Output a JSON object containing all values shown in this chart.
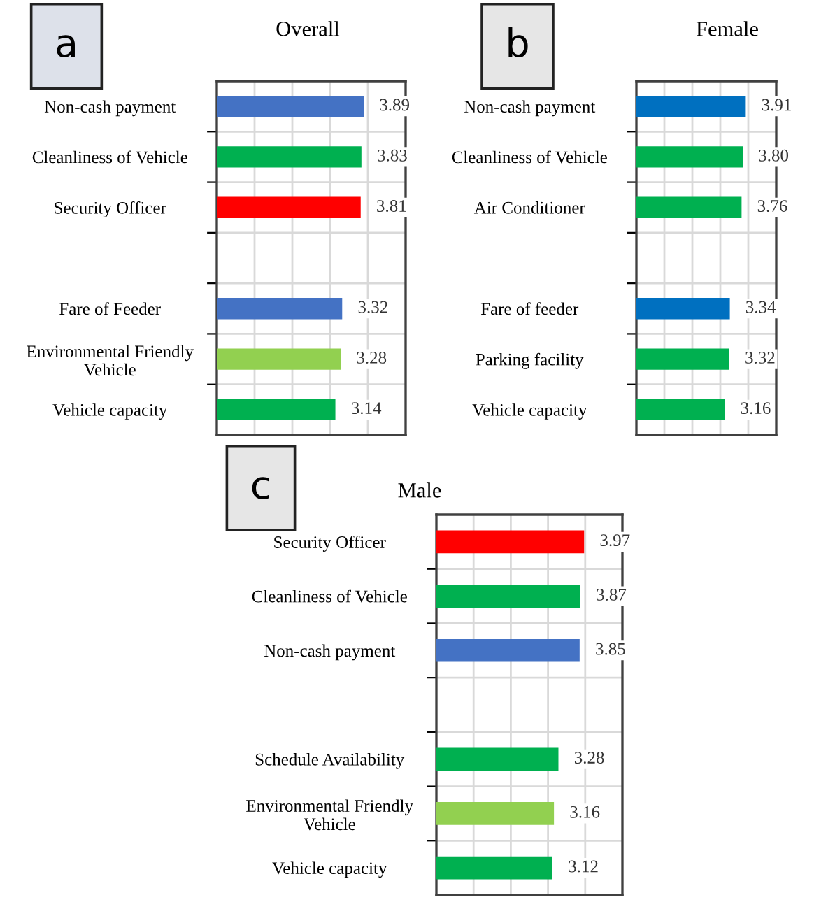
{
  "chart_data": [
    {
      "type": "bar",
      "orientation": "horizontal",
      "title": "Overall",
      "annotations": [
        "a"
      ],
      "categories": [
        "Non-cash payment",
        "Cleanliness of Vehicle",
        "Security Officer",
        null,
        "Fare of Feeder",
        "Environmental Friendly\nVehicle",
        "Vehicle capacity"
      ],
      "values": [
        3.89,
        3.83,
        3.81,
        null,
        3.32,
        3.28,
        3.14
      ],
      "colors": [
        "#4472c4",
        "#00b050",
        "#ff0000",
        null,
        "#4472c4",
        "#92d050",
        "#00b050"
      ],
      "xlim": [
        0,
        5
      ],
      "xticks": [
        {
          "value": 1,
          "label": null
        },
        {
          "value": 2,
          "label": null
        },
        {
          "value": 3,
          "label": null
        },
        {
          "value": 4,
          "label": null
        }
      ],
      "tick_labels": "y",
      "grid": true,
      "data_labels": true
    },
    {
      "type": "bar",
      "orientation": "horizontal",
      "title": "Female",
      "annotations": [
        "b"
      ],
      "categories": [
        "Non-cash payment",
        "Cleanliness of Vehicle",
        "Air Conditioner",
        null,
        "Fare of feeder",
        "Parking facility",
        "Vehicle capacity"
      ],
      "values": [
        3.91,
        3.8,
        3.76,
        null,
        3.34,
        3.32,
        3.16
      ],
      "colors": [
        "#0070c0",
        "#00b050",
        "#00b050",
        null,
        "#0070c0",
        "#00b050",
        "#00b050"
      ],
      "xlim": [
        0,
        5
      ],
      "xticks": [
        {
          "value": 1,
          "label": null
        },
        {
          "value": 2,
          "label": null
        },
        {
          "value": 3,
          "label": null
        },
        {
          "value": 4,
          "label": null
        }
      ],
      "tick_labels": "y",
      "grid": true,
      "value_labels": [
        "3.91",
        "3.80",
        "3.76",
        null,
        "3.34",
        "3.32",
        "3.16"
      ]
    },
    {
      "type": "bar",
      "orientation": "horizontal",
      "title": "Male",
      "annotations": [
        "c"
      ],
      "categories": [
        "Security Officer",
        "Cleanliness of Vehicle",
        "Non-cash payment",
        null,
        "Schedule Availability",
        "Environmental Friendly\nVehicle",
        "Vehicle capacity"
      ],
      "values": [
        3.97,
        3.87,
        3.85,
        null,
        3.28,
        3.16,
        3.12
      ],
      "colors": [
        "#ff0000",
        "#00b050",
        "#4472c4",
        null,
        "#00b050",
        "#92d050",
        "#00b050"
      ],
      "xlim": [
        0,
        5
      ],
      "xticks": [
        {
          "value": 1,
          "label": null
        },
        {
          "value": 2,
          "label": null
        },
        {
          "value": 3,
          "label": null
        },
        {
          "value": 4,
          "label": null
        }
      ],
      "tick_labels": "y",
      "grid": true,
      "data_labels": true
    }
  ]
}
